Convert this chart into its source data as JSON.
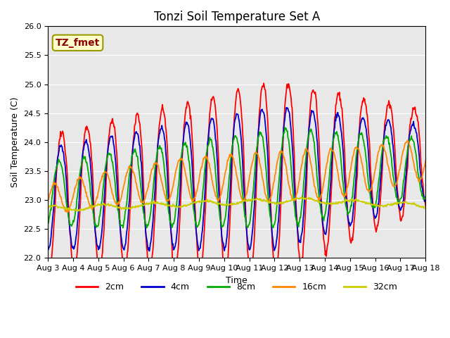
{
  "title": "Tonzi Soil Temperature Set A",
  "xlabel": "Time",
  "ylabel": "Soil Temperature (C)",
  "ylim": [
    22.0,
    26.0
  ],
  "yticks": [
    22.0,
    22.5,
    23.0,
    23.5,
    24.0,
    24.5,
    25.0,
    25.5,
    26.0
  ],
  "xtick_labels": [
    "Aug 3",
    "Aug 4",
    "Aug 5",
    "Aug 6",
    "Aug 7",
    "Aug 8",
    "Aug 9",
    "Aug 10",
    "Aug 11",
    "Aug 12",
    "Aug 13",
    "Aug 14",
    "Aug 15",
    "Aug 16",
    "Aug 17",
    "Aug 18"
  ],
  "annotation_text": "TZ_fmet",
  "annotation_color": "#8B0000",
  "annotation_bg": "#FFFFCC",
  "line_colors": [
    "#FF0000",
    "#0000CC",
    "#00AA00",
    "#FF8800",
    "#CCCC00"
  ],
  "line_labels": [
    "2cm",
    "4cm",
    "8cm",
    "16cm",
    "32cm"
  ],
  "line_width": 1.3,
  "bg_color": "#E8E8E8",
  "title_fontsize": 12,
  "label_fontsize": 9,
  "tick_fontsize": 8
}
